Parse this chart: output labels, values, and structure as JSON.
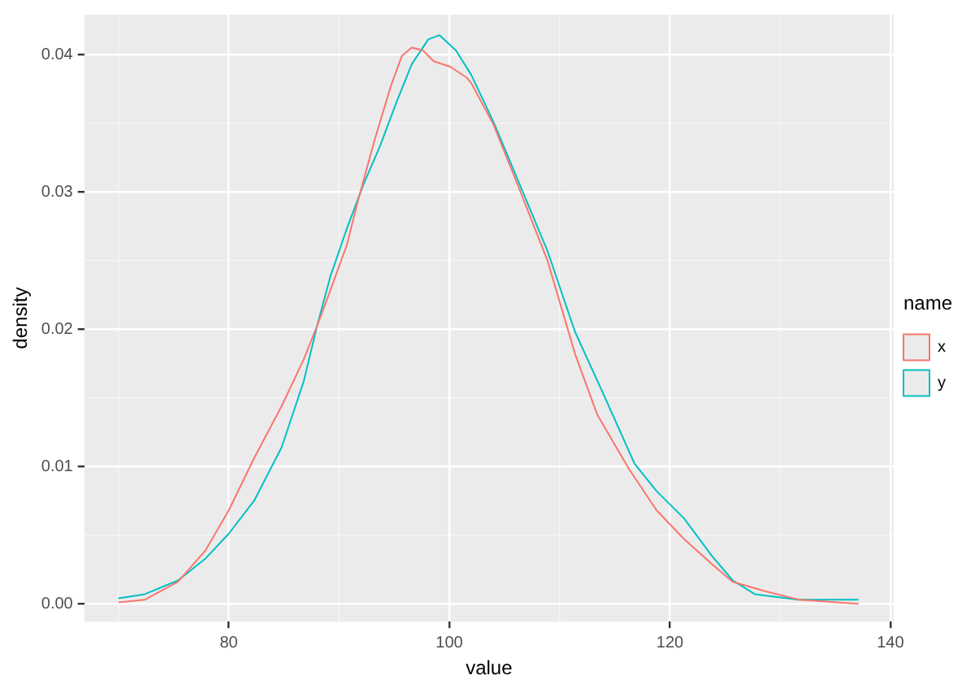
{
  "chart_data": {
    "type": "line",
    "xlabel": "value",
    "ylabel": "density",
    "legend_title": "name",
    "legend": "right",
    "grid": true,
    "marker": "none",
    "line_style": "solid",
    "xlim": [
      66.9,
      140.3
    ],
    "xticks": [
      80,
      100,
      120,
      140
    ],
    "ylim": [
      -0.0013,
      0.0429
    ],
    "yticks": [
      {
        "value": 0,
        "label": "0.00"
      },
      {
        "value": 0.01,
        "label": "0.01"
      },
      {
        "value": 0.02,
        "label": "0.02"
      },
      {
        "value": 0.03,
        "label": "0.03"
      },
      {
        "value": 0.04,
        "label": "0.04"
      }
    ],
    "series": [
      {
        "name": "x",
        "color": "#f8766d",
        "x": [
          70,
          72.4,
          75.4,
          77.9,
          80,
          82.3,
          84.8,
          86.8,
          88,
          89.2,
          90.7,
          91.7,
          93.2,
          94.7,
          95.7,
          96.6,
          97.6,
          98.6,
          100.1,
          101.6,
          102,
          104,
          106.4,
          108.9,
          111.4,
          113.4,
          116.3,
          118.8,
          121.3,
          123.8,
          125.7,
          128.7,
          131.7,
          137.1
        ],
        "values": [
          0.0001,
          0.0003,
          0.0016,
          0.0039,
          0.0068,
          0.0106,
          0.0144,
          0.0178,
          0.0202,
          0.0228,
          0.0261,
          0.0293,
          0.0337,
          0.0377,
          0.0399,
          0.0405,
          0.0403,
          0.0395,
          0.0391,
          0.0383,
          0.0379,
          0.0349,
          0.0301,
          0.025,
          0.0182,
          0.0138,
          0.0098,
          0.0068,
          0.0047,
          0.0029,
          0.0016,
          0.0009,
          0.0003,
          0
        ]
      },
      {
        "name": "y",
        "color": "#00bfc4",
        "x": [
          70,
          72.4,
          75.4,
          77.9,
          80,
          82.3,
          84.8,
          86.8,
          88,
          89.2,
          90.7,
          92.2,
          93.7,
          95.2,
          96.6,
          98.1,
          99.1,
          100.6,
          102,
          104,
          106.4,
          108.9,
          111.4,
          113.9,
          116.8,
          118.8,
          121.3,
          123.8,
          125.7,
          127.7,
          131.7,
          137.1
        ],
        "values": [
          0.0004,
          0.0007,
          0.0017,
          0.0033,
          0.0051,
          0.0075,
          0.0114,
          0.0162,
          0.0202,
          0.0238,
          0.0273,
          0.0305,
          0.0333,
          0.0365,
          0.0393,
          0.0411,
          0.0414,
          0.0403,
          0.0385,
          0.0351,
          0.0305,
          0.0257,
          0.0198,
          0.0154,
          0.0102,
          0.0082,
          0.0062,
          0.0035,
          0.0017,
          0.0007,
          0.0003,
          0.0003
        ]
      }
    ]
  }
}
